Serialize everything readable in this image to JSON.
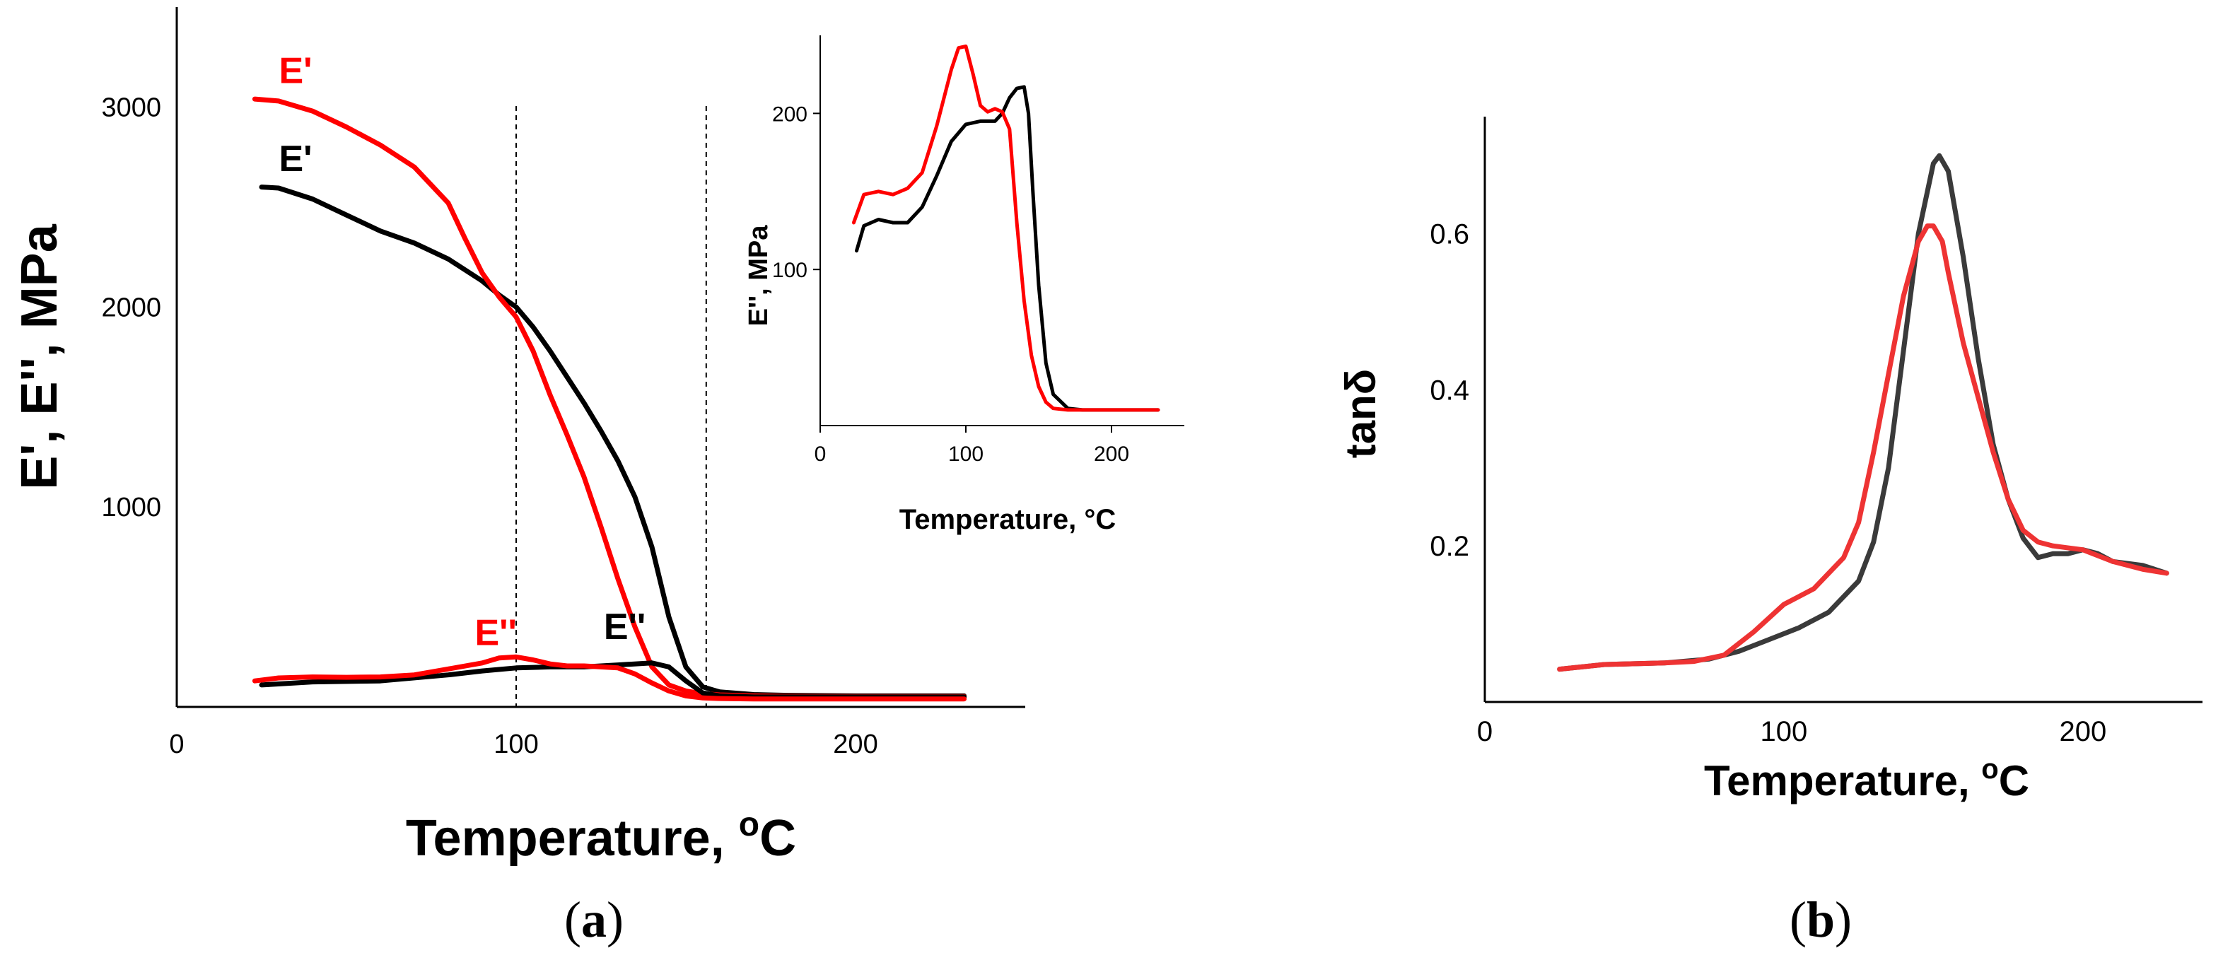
{
  "colors": {
    "black_series": "#000000",
    "red_series": "#ff0000",
    "gray_series": "#3a3a3a",
    "light_red_series": "#ee3333"
  },
  "panels": [
    {
      "panel_label": {
        "open": "(",
        "letter": "a",
        "close": ")"
      },
      "inset_xlabel": "Temperature, °C"
    },
    {
      "panel_label": {
        "open": "(",
        "letter": "b",
        "close": ")"
      }
    }
  ],
  "chart_data": [
    {
      "id": "a-main",
      "type": "line",
      "title": "",
      "xlabel_main": "Temperature, ",
      "xlabel_sup": "o",
      "xlabel_unit": "C",
      "ylabel": "E', E'', MPa",
      "xlim": [
        0,
        250
      ],
      "ylim": [
        0,
        3500
      ],
      "xticks": [
        0,
        100,
        200
      ],
      "yticks": [
        1000,
        2000,
        3000
      ],
      "vlines": [
        100,
        156
      ],
      "annotations": [
        {
          "text": "E'",
          "color": "#ff0000",
          "x": 35,
          "y": 3120
        },
        {
          "text": "E'",
          "color": "#000000",
          "x": 35,
          "y": 2680
        },
        {
          "text": "E''",
          "color": "#ff0000",
          "x": 94,
          "y": 310
        },
        {
          "text": "E''",
          "color": "#000000",
          "x": 132,
          "y": 340
        }
      ],
      "series": [
        {
          "name": "E' black",
          "color": "#000000",
          "x": [
            25,
            30,
            40,
            50,
            60,
            70,
            80,
            90,
            95,
            100,
            105,
            110,
            115,
            120,
            125,
            130,
            135,
            140,
            145,
            150,
            155,
            160,
            170,
            180,
            200,
            232
          ],
          "y": [
            2600,
            2595,
            2540,
            2460,
            2380,
            2320,
            2240,
            2130,
            2060,
            2000,
            1900,
            1780,
            1650,
            1520,
            1380,
            1230,
            1050,
            800,
            450,
            200,
            100,
            75,
            62,
            58,
            55,
            55
          ]
        },
        {
          "name": "E' red",
          "color": "#ff0000",
          "x": [
            23,
            30,
            40,
            50,
            60,
            70,
            80,
            85,
            90,
            95,
            100,
            105,
            110,
            115,
            120,
            125,
            130,
            135,
            140,
            145,
            150,
            155,
            160,
            170,
            180,
            200,
            232
          ],
          "y": [
            3040,
            3030,
            2980,
            2900,
            2810,
            2700,
            2520,
            2340,
            2170,
            2050,
            1950,
            1780,
            1560,
            1360,
            1150,
            900,
            640,
            400,
            200,
            110,
            80,
            66,
            60,
            55,
            53,
            52,
            52
          ]
        },
        {
          "name": "E'' black",
          "color": "#000000",
          "x": [
            25,
            40,
            60,
            80,
            90,
            100,
            110,
            120,
            130,
            140,
            145,
            150,
            155,
            160,
            170,
            200,
            232
          ],
          "y": [
            110,
            125,
            130,
            160,
            180,
            195,
            200,
            200,
            210,
            220,
            200,
            130,
            70,
            55,
            50,
            50,
            50
          ]
        },
        {
          "name": "E'' red",
          "color": "#ff0000",
          "x": [
            23,
            30,
            40,
            50,
            60,
            70,
            80,
            90,
            95,
            100,
            105,
            110,
            115,
            120,
            125,
            130,
            135,
            140,
            145,
            150,
            155,
            160,
            170,
            200,
            232
          ],
          "y": [
            130,
            145,
            150,
            148,
            150,
            160,
            190,
            220,
            245,
            250,
            235,
            215,
            205,
            205,
            200,
            195,
            165,
            120,
            80,
            55,
            45,
            42,
            40,
            40,
            40
          ]
        }
      ]
    },
    {
      "id": "a-inset",
      "type": "line",
      "title": "",
      "ylabel": "E'', MPa",
      "xlim": [
        0,
        250
      ],
      "ylim": [
        0,
        250
      ],
      "xticks": [
        0,
        100,
        200
      ],
      "yticks": [
        100,
        200
      ],
      "series": [
        {
          "name": "E'' black",
          "color": "#000000",
          "x": [
            25,
            30,
            40,
            50,
            60,
            70,
            80,
            90,
            100,
            110,
            115,
            120,
            125,
            130,
            135,
            140,
            143,
            146,
            150,
            155,
            160,
            170,
            180,
            200,
            232
          ],
          "y": [
            112,
            128,
            132,
            130,
            130,
            140,
            160,
            182,
            193,
            195,
            195,
            195,
            200,
            210,
            216,
            217,
            200,
            150,
            90,
            40,
            20,
            11,
            10,
            10,
            10
          ]
        },
        {
          "name": "E'' red",
          "color": "#ff0000",
          "x": [
            23,
            30,
            40,
            50,
            60,
            70,
            80,
            90,
            95,
            100,
            105,
            110,
            115,
            120,
            125,
            130,
            135,
            140,
            145,
            150,
            155,
            160,
            170,
            180,
            200,
            232
          ],
          "y": [
            130,
            148,
            150,
            148,
            152,
            162,
            192,
            228,
            242,
            243,
            225,
            205,
            201,
            203,
            201,
            190,
            130,
            80,
            45,
            25,
            15,
            11,
            10,
            10,
            10,
            10
          ]
        }
      ]
    },
    {
      "id": "b",
      "type": "line",
      "title": "",
      "xlabel_main": "Temperature, ",
      "xlabel_sup": "o",
      "xlabel_unit": "C",
      "ylabel": "tanδ",
      "xlim": [
        0,
        240
      ],
      "ylim": [
        0,
        0.75
      ],
      "xticks": [
        0,
        100,
        200
      ],
      "yticks": [
        0.2,
        0.4,
        0.6
      ],
      "series": [
        {
          "name": "tanδ gray",
          "color": "#3a3a3a",
          "x": [
            25,
            40,
            60,
            75,
            85,
            95,
            105,
            115,
            125,
            130,
            135,
            140,
            145,
            150,
            152,
            155,
            160,
            165,
            170,
            175,
            180,
            185,
            190,
            195,
            200,
            205,
            210,
            220,
            228
          ],
          "y": [
            0.042,
            0.048,
            0.05,
            0.055,
            0.065,
            0.08,
            0.095,
            0.115,
            0.155,
            0.205,
            0.3,
            0.45,
            0.6,
            0.69,
            0.7,
            0.68,
            0.57,
            0.44,
            0.33,
            0.26,
            0.21,
            0.185,
            0.19,
            0.19,
            0.195,
            0.19,
            0.18,
            0.175,
            0.165
          ]
        },
        {
          "name": "tanδ red",
          "color": "#ee3333",
          "x": [
            25,
            40,
            60,
            70,
            80,
            90,
            100,
            110,
            120,
            125,
            130,
            135,
            140,
            145,
            148,
            150,
            153,
            155,
            160,
            165,
            170,
            175,
            180,
            185,
            190,
            200,
            210,
            220,
            228
          ],
          "y": [
            0.042,
            0.048,
            0.05,
            0.052,
            0.06,
            0.09,
            0.125,
            0.145,
            0.185,
            0.23,
            0.32,
            0.42,
            0.52,
            0.59,
            0.61,
            0.61,
            0.59,
            0.55,
            0.46,
            0.39,
            0.32,
            0.26,
            0.22,
            0.205,
            0.2,
            0.195,
            0.18,
            0.17,
            0.165
          ]
        }
      ]
    }
  ]
}
